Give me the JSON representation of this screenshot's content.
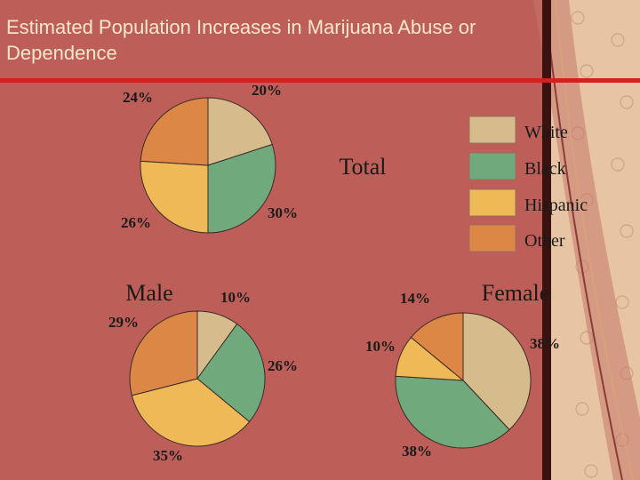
{
  "slide": {
    "title": "Estimated Population Increases in Marijuana Abuse or Dependence"
  },
  "colors": {
    "background": "#bd5e59",
    "title_text": "#f4e8c9",
    "rule": "#d81f1f",
    "frame": "#3a1210",
    "decor": "#e7c5a4"
  },
  "chart_data": [
    {
      "type": "pie",
      "title": "Total",
      "categories": [
        "White",
        "Black",
        "Hispanic",
        "Other"
      ],
      "values": [
        20,
        30,
        26,
        24
      ],
      "labels": [
        "20%",
        "30%",
        "26%",
        "24%"
      ]
    },
    {
      "type": "pie",
      "title": "Male",
      "categories": [
        "White",
        "Black",
        "Hispanic",
        "Other"
      ],
      "values": [
        10,
        26,
        35,
        29
      ],
      "labels": [
        "10%",
        "26%",
        "35%",
        "29%"
      ]
    },
    {
      "type": "pie",
      "title": "Female",
      "categories": [
        "White",
        "Black",
        "Hispanic",
        "Other"
      ],
      "values": [
        38,
        38,
        10,
        14
      ],
      "labels": [
        "38%",
        "38%",
        "10%",
        "14%"
      ]
    }
  ],
  "legend": {
    "position": "right",
    "items": [
      {
        "label": "White",
        "color": "#d6bb8c"
      },
      {
        "label": "Black",
        "color": "#6fa97c"
      },
      {
        "label": "Hispanic",
        "color": "#f0b957"
      },
      {
        "label": "Other",
        "color": "#dc8745"
      }
    ]
  }
}
